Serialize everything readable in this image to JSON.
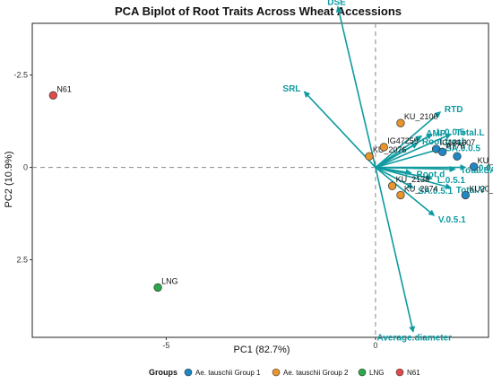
{
  "chart_data": {
    "type": "scatter",
    "title": "PCA Biplot of Root Traits Across Wheat Accessions",
    "xlabel": "PC1 (82.7%)",
    "ylabel": "PC2 (10.9%)",
    "xlim": [
      -8.2,
      2.7
    ],
    "ylim": [
      -3.9,
      4.6
    ],
    "y_reversed": true,
    "x_ticks": [
      -5,
      0
    ],
    "x_tick_labels": [
      "-5",
      "0"
    ],
    "y_ticks": [
      -2.5,
      0,
      2.5
    ],
    "y_tick_labels": [
      "-2.5",
      "0",
      "2.5"
    ],
    "reference_lines": {
      "x": 0,
      "y": 0
    },
    "grid": false,
    "legend_position": "bottom",
    "legend_title": "Groups",
    "groups": [
      {
        "name": "Ae. tauschii Group 1",
        "color": "#1f87c3"
      },
      {
        "name": "Ae. tauschii Group 2",
        "color": "#e8952e"
      },
      {
        "name": "LNG",
        "color": "#2ba84a"
      },
      {
        "name": "N61",
        "color": "#e14a4a"
      }
    ],
    "points": [
      {
        "label": "N61",
        "group": "N61",
        "x": -7.7,
        "y": -1.95
      },
      {
        "label": "LNG",
        "group": "LNG",
        "x": -5.2,
        "y": 3.25
      },
      {
        "label": "KU_2076",
        "group": "Ae. tauschii Group 2",
        "x": -0.15,
        "y": -0.3
      },
      {
        "label": "IG47259",
        "group": "Ae. tauschii Group 2",
        "x": 0.2,
        "y": -0.55
      },
      {
        "label": "KU_2100",
        "group": "Ae. tauschii Group 2",
        "x": 0.6,
        "y": -1.2
      },
      {
        "label": "KU_2138",
        "group": "Ae. tauschii Group 2",
        "x": 0.4,
        "y": 0.5
      },
      {
        "label": "KU_2074",
        "group": "Ae. tauschii Group 2",
        "x": 0.6,
        "y": 0.75
      },
      {
        "label": "IG131607",
        "group": "Ae. tauschii Group 1",
        "x": 1.45,
        "y": -0.5
      },
      {
        "label": "AT76",
        "group": "Ae. tauschii Group 1",
        "x": 1.6,
        "y": -0.42
      },
      {
        "label": "KU_2126",
        "group": "Ae. tauschii Group 1",
        "x": 2.35,
        "y": -0.02
      },
      {
        "label": "KU20_8",
        "group": "Ae. tauschii Group 1",
        "x": 2.15,
        "y": 0.75
      },
      {
        "label": "",
        "group": "Ae. tauschii Group 1",
        "x": 1.95,
        "y": -0.3
      }
    ],
    "loadings": [
      {
        "label": "DSE",
        "x": -0.9,
        "y": -4.35
      },
      {
        "label": "SRL",
        "x": -1.7,
        "y": -2.05
      },
      {
        "label": "RTD",
        "x": 1.55,
        "y": -1.5
      },
      {
        "label": "Total.L",
        "x": 1.8,
        "y": -0.9
      },
      {
        "label": "L.0.0.5",
        "x": 1.35,
        "y": -0.9
      },
      {
        "label": "AMP",
        "x": 1.1,
        "y": -0.85
      },
      {
        "label": "Root.fresh",
        "x": 1.0,
        "y": -0.65
      },
      {
        "label": "SA.0.0.5",
        "x": 1.55,
        "y": -0.5
      },
      {
        "label": "V.0.0.5",
        "x": 2.15,
        "y": 0
      },
      {
        "label": "Total.SA",
        "x": 1.9,
        "y": 0.05
      },
      {
        "label": "Root.d",
        "x": 0.85,
        "y": 0.15
      },
      {
        "label": "L.0.5.1",
        "x": 1.35,
        "y": 0.3
      },
      {
        "label": "SA.0.5.1",
        "x": 0.9,
        "y": 0.55
      },
      {
        "label": "Total.V",
        "x": 1.8,
        "y": 0.55
      },
      {
        "label": "V.0.5.1",
        "x": 1.4,
        "y": 1.3
      },
      {
        "label": "Average.diameter",
        "x": 0.9,
        "y": 4.45
      }
    ]
  }
}
